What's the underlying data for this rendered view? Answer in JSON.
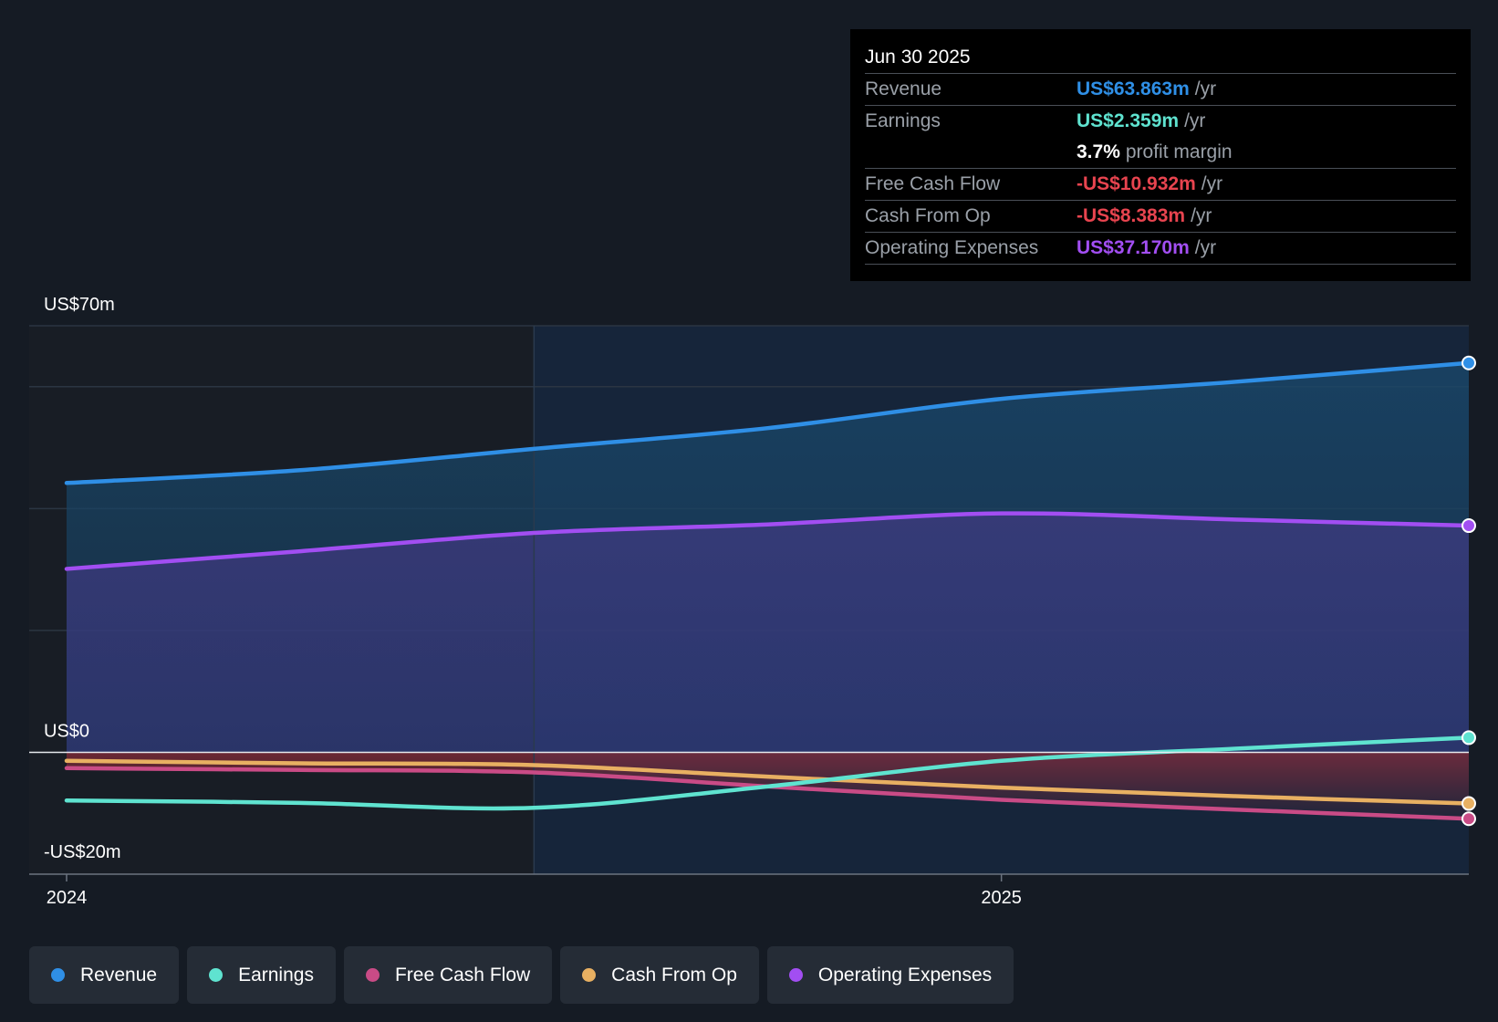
{
  "tooltip": {
    "date": "Jun 30 2025",
    "rows": [
      {
        "label": "Revenue",
        "value": "US$63.863m",
        "unit": "/yr",
        "color": "#2f8fe6"
      },
      {
        "label": "Earnings",
        "value": "US$2.359m",
        "unit": "/yr",
        "color": "#5fe3d0"
      },
      {
        "label": "",
        "value": "3.7%",
        "unit": "profit margin",
        "color": "#ffffff"
      },
      {
        "label": "Free Cash Flow",
        "value": "-US$10.932m",
        "unit": "/yr",
        "color": "#e8444f"
      },
      {
        "label": "Cash From Op",
        "value": "-US$8.383m",
        "unit": "/yr",
        "color": "#e8444f"
      },
      {
        "label": "Operating Expenses",
        "value": "US$37.170m",
        "unit": "/yr",
        "color": "#a24ef2"
      }
    ]
  },
  "legend": [
    {
      "label": "Revenue",
      "color": "#2f8fe6"
    },
    {
      "label": "Earnings",
      "color": "#5fe3d0"
    },
    {
      "label": "Free Cash Flow",
      "color": "#c94b86"
    },
    {
      "label": "Cash From Op",
      "color": "#e8b062"
    },
    {
      "label": "Operating Expenses",
      "color": "#a24ef2"
    }
  ],
  "chart_data": {
    "type": "line",
    "title": "",
    "y_tick_labels": {
      "top": "US$70m",
      "zero": "US$0",
      "bottom": "-US$20m"
    },
    "ylim": [
      -20,
      70
    ],
    "x_range": [
      2023.96,
      2025.5
    ],
    "x_ticks": [
      {
        "label": "2024",
        "value": 2024.0
      },
      {
        "label": "2025",
        "value": 2025.0
      }
    ],
    "past_divider_x": 2024.5,
    "series": [
      {
        "name": "Revenue",
        "color": "#2f8fe6",
        "x": [
          2024.0,
          2024.25,
          2024.5,
          2024.75,
          2025.0,
          2025.25,
          2025.5
        ],
        "values": [
          44.2,
          46.3,
          49.8,
          53.2,
          58.0,
          60.8,
          63.9
        ]
      },
      {
        "name": "Operating Expenses",
        "color": "#a24ef2",
        "x": [
          2024.0,
          2024.25,
          2024.5,
          2024.75,
          2025.0,
          2025.25,
          2025.5
        ],
        "values": [
          30.1,
          33.0,
          36.0,
          37.4,
          39.2,
          38.2,
          37.2
        ]
      },
      {
        "name": "Earnings",
        "color": "#5fe3d0",
        "x": [
          2024.0,
          2024.25,
          2024.5,
          2024.75,
          2025.0,
          2025.25,
          2025.5
        ],
        "values": [
          -7.9,
          -8.3,
          -9.1,
          -5.6,
          -1.4,
          0.6,
          2.4
        ]
      },
      {
        "name": "Cash From Op",
        "color": "#e8b062",
        "x": [
          2024.0,
          2024.25,
          2024.5,
          2024.75,
          2025.0,
          2025.25,
          2025.5
        ],
        "values": [
          -1.4,
          -1.8,
          -2.1,
          -4.0,
          -5.8,
          -7.2,
          -8.4
        ]
      },
      {
        "name": "Free Cash Flow",
        "color": "#c94b86",
        "x": [
          2024.0,
          2024.25,
          2024.5,
          2024.75,
          2025.0,
          2025.25,
          2025.5
        ],
        "values": [
          -2.6,
          -2.9,
          -3.3,
          -5.6,
          -7.8,
          -9.4,
          -10.9
        ]
      }
    ]
  }
}
